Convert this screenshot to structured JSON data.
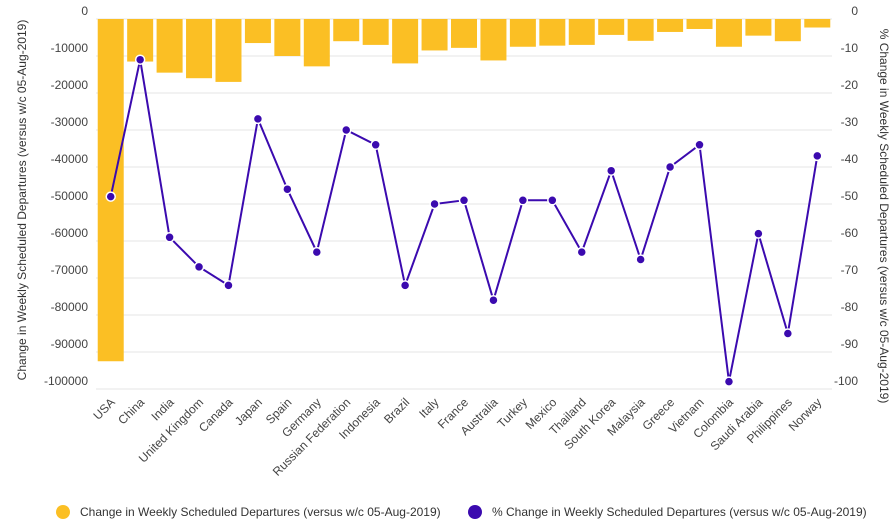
{
  "chart_data": {
    "type": "bar+line",
    "categories": [
      "USA",
      "China",
      "India",
      "United Kingdom",
      "Canada",
      "Japan",
      "Spain",
      "Germany",
      "Russian Federation",
      "Indonesia",
      "Brazil",
      "Italy",
      "France",
      "Australia",
      "Turkey",
      "Mexico",
      "Thailand",
      "South Korea",
      "Malaysia",
      "Greece",
      "Vietnam",
      "Colombia",
      "Saudi Arabia",
      "Philippines",
      "Norway"
    ],
    "series": [
      {
        "name": "Change in Weekly Scheduled Departures (versus w/c 05-Aug-2019)",
        "type": "bar",
        "axis": "left",
        "color": "#FBBF24",
        "values": [
          -92500,
          -11500,
          -14500,
          -16000,
          -17000,
          -6500,
          -10000,
          -12800,
          -6000,
          -7000,
          -12000,
          -8500,
          -7800,
          -11200,
          -7500,
          -7200,
          -7000,
          -4300,
          -5900,
          -3500,
          -2700,
          -7500,
          -4500,
          -6000,
          -2300
        ]
      },
      {
        "name": "% Change in Weekly Scheduled Departures (versus w/c 05-Aug-2019)",
        "type": "line",
        "axis": "right",
        "color": "#3B0AAF",
        "values": [
          -48,
          -11,
          -59,
          -67,
          -72,
          -27,
          -46,
          -63,
          -30,
          -34,
          -72,
          -50,
          -49,
          -76,
          -49,
          -49,
          -63,
          -41,
          -65,
          -40,
          -34,
          -98,
          -58,
          -85,
          -37
        ]
      }
    ],
    "y_left": {
      "label": "Change in Weekly Scheduled Departures (versus w/c 05-Aug-2019)",
      "ylim": [
        -100000,
        0
      ],
      "ticks": [
        0,
        -10000,
        -20000,
        -30000,
        -40000,
        -50000,
        -60000,
        -70000,
        -80000,
        -90000,
        -100000
      ]
    },
    "y_right": {
      "label": "% Change in Weekly Scheduled Departures (versus w/c 05-Aug-2019)",
      "ylim": [
        -100,
        0
      ],
      "ticks": [
        0,
        -10,
        -20,
        -30,
        -40,
        -50,
        -60,
        -70,
        -80,
        -90,
        -100
      ]
    },
    "grid": true,
    "legend_position": "bottom"
  }
}
